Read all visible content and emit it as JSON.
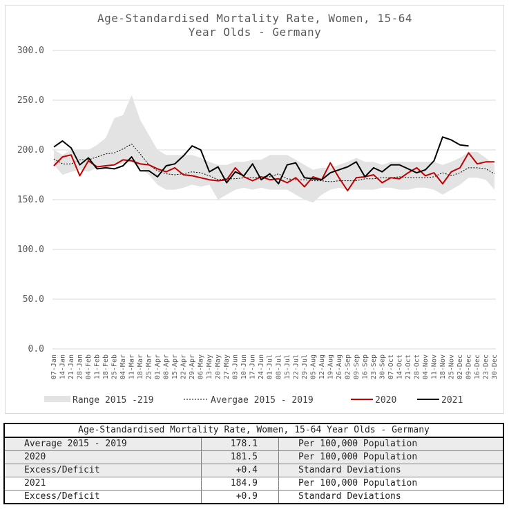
{
  "chart_data": {
    "type": "line",
    "title": [
      "Age-Standardised Mortality Rate, Women, 15-64",
      "Year Olds - Germany"
    ],
    "ylim": [
      0,
      300
    ],
    "yticks": [
      "0.0",
      "50.0",
      "100.0",
      "150.0",
      "200.0",
      "250.0",
      "300.0"
    ],
    "ytick_values": [
      0,
      50,
      100,
      150,
      200,
      250,
      300
    ],
    "grid": true,
    "legend_position": "bottom",
    "categories": [
      "07-Jan",
      "14-Jan",
      "21-Jan",
      "28-Jan",
      "04-Feb",
      "11-Feb",
      "18-Feb",
      "25-Feb",
      "04-Mar",
      "11-Mar",
      "18-Mar",
      "25-Mar",
      "01-Apr",
      "08-Apr",
      "15-Apr",
      "22-Apr",
      "29-Apr",
      "06-May",
      "13-May",
      "20-May",
      "27-May",
      "03-Jun",
      "10-Jun",
      "17-Jun",
      "24-Jun",
      "01-Jul",
      "08-Jul",
      "15-Jul",
      "22-Jul",
      "29-Jul",
      "05-Aug",
      "12-Aug",
      "19-Aug",
      "26-Aug",
      "02-Sep",
      "09-Sep",
      "16-Sep",
      "23-Sep",
      "30-Sep",
      "07-Oct",
      "14-Oct",
      "21-Oct",
      "28-Oct",
      "04-Nov",
      "11-Nov",
      "18-Nov",
      "25-Nov",
      "02-Dec",
      "09-Dec",
      "16-Dec",
      "23-Dec",
      "30-Dec"
    ],
    "series": [
      {
        "name": "Range 2015 -219",
        "type": "range",
        "color": "#e3e3e3",
        "low": [
          185,
          175,
          178,
          180,
          178,
          182,
          184,
          186,
          186,
          188,
          182,
          175,
          165,
          160,
          160,
          162,
          165,
          163,
          165,
          150,
          155,
          160,
          162,
          160,
          162,
          160,
          160,
          160,
          155,
          150,
          147,
          155,
          160,
          162,
          160,
          160,
          160,
          160,
          162,
          162,
          160,
          160,
          162,
          162,
          160,
          155,
          160,
          165,
          172,
          172,
          170,
          160
        ],
        "high": [
          200,
          195,
          200,
          200,
          200,
          205,
          212,
          232,
          235,
          255,
          230,
          215,
          200,
          195,
          195,
          195,
          195,
          192,
          188,
          185,
          185,
          188,
          188,
          190,
          190,
          195,
          195,
          195,
          190,
          185,
          180,
          182,
          182,
          185,
          188,
          192,
          188,
          188,
          185,
          188,
          188,
          188,
          188,
          188,
          188,
          185,
          188,
          192,
          198,
          198,
          192,
          185
        ]
      },
      {
        "name": "Avergae 2015 - 2019",
        "type": "dashed",
        "color": "#000000",
        "values": [
          191,
          186,
          186,
          190,
          190,
          193,
          196,
          197,
          201,
          206,
          196,
          185,
          179,
          176,
          175,
          176,
          178,
          177,
          174,
          170,
          171,
          171,
          172,
          172,
          173,
          173,
          176,
          171,
          170,
          170,
          169,
          169,
          168,
          169,
          169,
          169,
          171,
          171,
          172,
          172,
          173,
          172,
          172,
          172,
          173,
          177,
          174,
          177,
          182,
          182,
          181,
          176
        ]
      },
      {
        "name": "2020",
        "type": "line",
        "color": "#c00000",
        "values": [
          184,
          193,
          195,
          174,
          189,
          183,
          184,
          185,
          190,
          189,
          186,
          185,
          181,
          178,
          182,
          175,
          174,
          172,
          170,
          169,
          170,
          182,
          173,
          169,
          173,
          170,
          171,
          167,
          172,
          163,
          173,
          170,
          187,
          172,
          159,
          172,
          173,
          175,
          167,
          172,
          171,
          177,
          182,
          174,
          177,
          166,
          178,
          182,
          197,
          186,
          188,
          188
        ]
      },
      {
        "name": "2021",
        "type": "line",
        "color": "#000000",
        "values": [
          203,
          209,
          202,
          185,
          192,
          181,
          182,
          181,
          184,
          193,
          179,
          179,
          173,
          184,
          186,
          194,
          204,
          200,
          178,
          183,
          167,
          178,
          174,
          186,
          170,
          176,
          166,
          185,
          187,
          172,
          171,
          170,
          177,
          180,
          183,
          188,
          173,
          182,
          178,
          185,
          185,
          181,
          177,
          180,
          189,
          213,
          210,
          205,
          204,
          null,
          null,
          null
        ]
      }
    ]
  },
  "table": {
    "title": "Age-Standardised Mortality Rate, Women, 15-64 Year Olds - Germany",
    "rows": [
      {
        "label": "Average 2015 - 2019",
        "value": "178.1",
        "unit": "Per 100,000 Population"
      },
      {
        "label": "2020",
        "value": "181.5",
        "unit": "Per 100,000 Population"
      },
      {
        "label": "Excess/Deficit",
        "value": "+0.4",
        "unit": "Standard Deviations"
      },
      {
        "label": "2021",
        "value": "184.9",
        "unit": "Per 100,000 Population"
      },
      {
        "label": "Excess/Deficit",
        "value": "+0.9",
        "unit": "Standard Deviations"
      }
    ]
  }
}
